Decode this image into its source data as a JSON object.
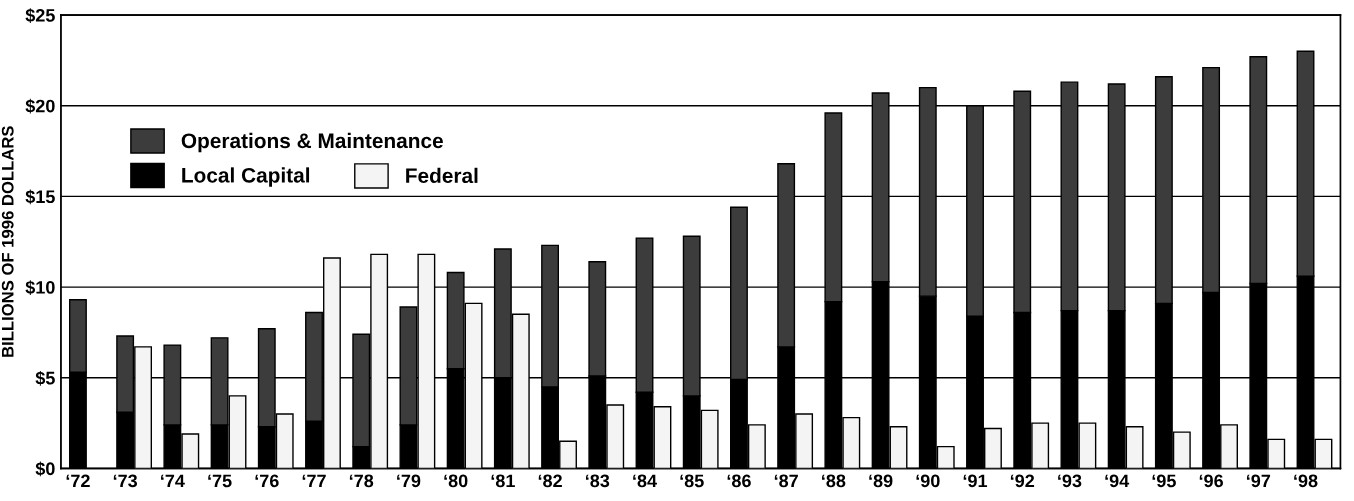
{
  "chart_data": [
    {
      "type": "bar",
      "stacked": true,
      "ylabel": "BILLIONS OF 1996 DOLLARS",
      "categories": [
        "‘72",
        "‘73",
        "‘74",
        "‘75",
        "‘76",
        "‘77",
        "‘78",
        "‘79",
        "‘80",
        "‘81",
        "‘82",
        "‘83",
        "‘84",
        "‘85",
        "‘86",
        "‘87",
        "‘88",
        "‘89",
        "‘90",
        "‘91",
        "‘92",
        "‘93",
        "‘94",
        "‘95",
        "‘96",
        "‘97",
        "‘98"
      ],
      "series": [
        {
          "name": "Local Capital",
          "color": "#000000",
          "values": [
            5.3,
            3.1,
            2.4,
            2.4,
            2.3,
            2.6,
            1.2,
            2.4,
            5.5,
            5.0,
            4.5,
            5.1,
            4.2,
            4.0,
            4.9,
            6.7,
            9.2,
            10.3,
            9.5,
            8.4,
            8.6,
            8.7,
            8.7,
            9.1,
            9.7,
            10.2,
            10.6
          ]
        },
        {
          "name": "Operations & Maintenance",
          "color": "#3c3c3c",
          "values": [
            4.0,
            4.2,
            4.4,
            4.8,
            5.4,
            6.0,
            6.2,
            6.5,
            5.3,
            7.1,
            7.8,
            6.3,
            8.5,
            8.8,
            9.5,
            10.1,
            10.4,
            10.4,
            11.5,
            11.6,
            12.2,
            12.6,
            12.5,
            12.5,
            12.4,
            12.5,
            12.4
          ]
        }
      ],
      "ylim": [
        0,
        25
      ],
      "yticks": [
        {
          "value": 0,
          "label": "$0"
        },
        {
          "value": 5,
          "label": "$5"
        },
        {
          "value": 10,
          "label": "$10"
        },
        {
          "value": 15,
          "label": "$15"
        },
        {
          "value": 20,
          "label": "$20"
        },
        {
          "value": 25,
          "label": "$25"
        }
      ],
      "grid": "y",
      "legend": "top left"
    },
    {
      "type": "bar",
      "categories": [
        null,
        null,
        null,
        null,
        null,
        null,
        null,
        null,
        null,
        null,
        null,
        null,
        null,
        null,
        null,
        null,
        null,
        null,
        null,
        null,
        null,
        null,
        null,
        null,
        null,
        null,
        null
      ],
      "series": [
        {
          "name": "Federal",
          "color": "#f4f4f4",
          "values": [
            null,
            6.7,
            1.9,
            4.0,
            3.0,
            11.6,
            11.8,
            11.8,
            9.1,
            8.5,
            1.5,
            3.5,
            3.4,
            3.2,
            2.4,
            3.0,
            2.8,
            2.3,
            1.2,
            2.2,
            2.5,
            2.5,
            2.3,
            2.0,
            2.4,
            1.6,
            1.6
          ]
        }
      ],
      "ylim": [
        0,
        25
      ],
      "legend": "top left"
    }
  ]
}
